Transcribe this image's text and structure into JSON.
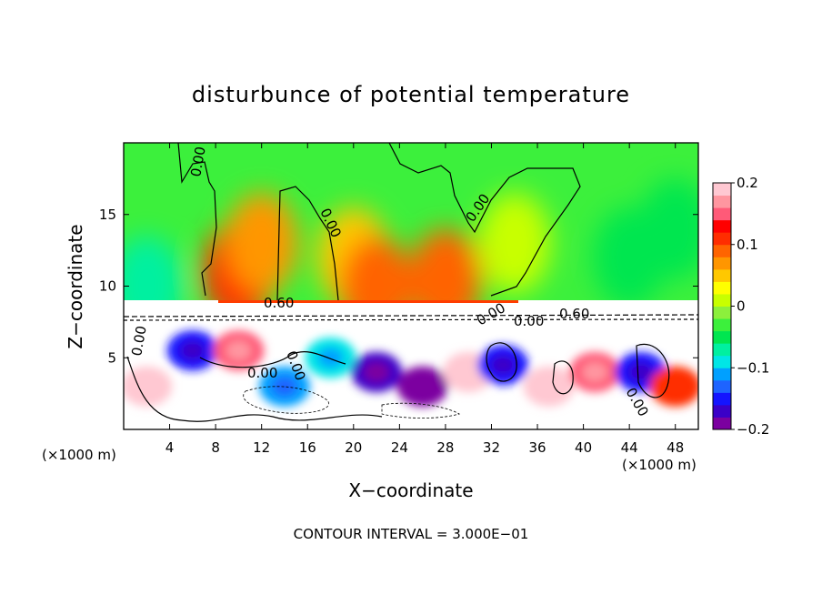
{
  "chart_data": {
    "type": "heatmap",
    "title": "disturbunce of potential temperature",
    "xlabel": "X−coordinate",
    "ylabel": "Z−coordinate",
    "x_unit_label": "(×1000 m)",
    "y_unit_label": "(×1000 m)",
    "xlim": [
      0,
      50
    ],
    "ylim": [
      0,
      20
    ],
    "x_ticks": [
      "4",
      "8",
      "12",
      "16",
      "20",
      "24",
      "28",
      "32",
      "36",
      "40",
      "44",
      "48"
    ],
    "y_ticks": [
      "5",
      "10",
      "15"
    ],
    "colorbar": {
      "min": -0.2,
      "max": 0.2,
      "tick_labels": [
        "0.2",
        "0.1",
        "0",
        "−0.1",
        "−0.2"
      ],
      "tick_values": [
        0.2,
        0.1,
        0,
        -0.1,
        -0.2
      ],
      "colors": [
        "#7b00a0",
        "#3a00c8",
        "#1414ff",
        "#1e64ff",
        "#00a0ff",
        "#00e6e6",
        "#00f0a0",
        "#00e650",
        "#3cf03c",
        "#8cf03c",
        "#c8ff00",
        "#ffff00",
        "#ffc800",
        "#ff9600",
        "#ff6400",
        "#ff2d00",
        "#ff0000",
        "#ff5a78",
        "#ff96a0",
        "#ffc8d2"
      ]
    },
    "contour_labels": [
      "0.00",
      "0.00",
      "0.00",
      "0.00",
      "0.00",
      "0.00",
      "0.60",
      "0.00",
      "0.60",
      "0.00",
      "0.00"
    ],
    "footnote": "CONTOUR INTERVAL = 3.000E−01",
    "field": {
      "tropopause_z": 8.5,
      "upper_level": [
        {
          "x": 2,
          "z": 10,
          "v": -0.08
        },
        {
          "x": 10,
          "z": 11,
          "v": 0.11
        },
        {
          "x": 12,
          "z": 13,
          "v": 0.06
        },
        {
          "x": 20,
          "z": 12,
          "v": 0.04
        },
        {
          "x": 22,
          "z": 10,
          "v": 0.09
        },
        {
          "x": 28,
          "z": 10.5,
          "v": 0.08
        },
        {
          "x": 34,
          "z": 13,
          "v": 0.02
        },
        {
          "x": 44,
          "z": 12,
          "v": -0.05
        },
        {
          "x": 48,
          "z": 14,
          "v": -0.04
        }
      ],
      "lower_level": [
        {
          "x": 2,
          "z": 3,
          "v": 0.2
        },
        {
          "x": 6,
          "z": 5.5,
          "v": -0.15
        },
        {
          "x": 10,
          "z": 5.5,
          "v": 0.15
        },
        {
          "x": 14,
          "z": 3,
          "v": -0.12
        },
        {
          "x": 18,
          "z": 5,
          "v": -0.1
        },
        {
          "x": 22,
          "z": 4,
          "v": -0.18
        },
        {
          "x": 26,
          "z": 3,
          "v": -0.2
        },
        {
          "x": 30,
          "z": 4,
          "v": 0.2
        },
        {
          "x": 33,
          "z": 4.5,
          "v": -0.15
        },
        {
          "x": 37,
          "z": 3,
          "v": 0.2
        },
        {
          "x": 41,
          "z": 4,
          "v": 0.15
        },
        {
          "x": 45,
          "z": 4,
          "v": -0.15
        },
        {
          "x": 48,
          "z": 3,
          "v": 0.1
        }
      ]
    }
  }
}
